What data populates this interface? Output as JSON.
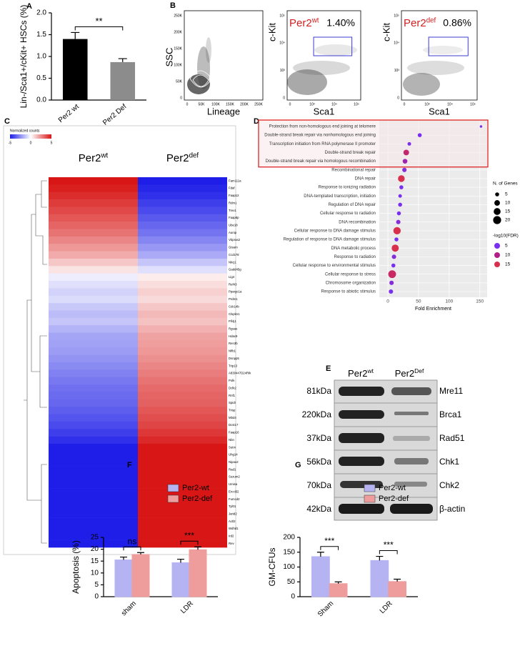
{
  "chart_data": [
    {
      "panel": "A",
      "type": "bar",
      "categories": [
        "Per2 wt",
        "Per2 Def"
      ],
      "values": [
        1.4,
        0.87
      ],
      "errors": [
        0.15,
        0.08
      ],
      "colors": [
        "#000000",
        "#8c8c8c"
      ],
      "ylabel": "Lin-/Sca1+/cKit+ HSCs (%)",
      "ylim": [
        0,
        2
      ],
      "yticks": [
        {
          "value": 0,
          "label": "0.0"
        },
        {
          "value": 0.5,
          "label": "0.5"
        },
        {
          "value": 1,
          "label": "1.0"
        },
        {
          "value": 1.5,
          "label": "1.5"
        },
        {
          "value": 2,
          "label": "2.0"
        }
      ],
      "annotations": [
        "**"
      ]
    },
    {
      "panel": "B",
      "type": "flow",
      "plots": [
        {
          "xlabel": "Lineage",
          "ylabel": "SSC",
          "xticks": [
            "0",
            "50K",
            "100K",
            "150K",
            "200K",
            "250K"
          ],
          "yticks": [
            "0",
            "50K",
            "100K",
            "150K",
            "200K",
            "250K"
          ]
        },
        {
          "title": {
            "base": "Per2",
            "sup": "wt"
          },
          "gate_label": "1.40%",
          "xlabel": "Sca1",
          "ylabel": "c-Kit",
          "xticks": [
            "0",
            "10³",
            "10⁴",
            "10⁵"
          ],
          "yticks": [
            "0",
            "10³",
            "10⁴",
            "10⁵"
          ]
        },
        {
          "title": {
            "base": "Per2",
            "sup": "def"
          },
          "gate_label": "0.86%",
          "xlabel": "Sca1",
          "ylabel": "c-Kit",
          "xticks": [
            "0",
            "10³",
            "10⁴",
            "10⁵"
          ],
          "yticks": [
            "0",
            "10³",
            "10⁴",
            "10⁵"
          ]
        }
      ],
      "gate_color": "#3b3bd6",
      "title_color": "#d02020"
    },
    {
      "panel": "C",
      "type": "heatmap",
      "colorbar_title": "Normalized counts",
      "colorbar_ticks": [
        -5,
        0,
        5
      ],
      "colors": {
        "low": "#1e1ee8",
        "mid": "#ffffff",
        "high": "#d81616"
      },
      "rows": [
        "Fam111a",
        "Fdaf",
        "Faap12",
        "Rdm1",
        "Trex1",
        "Faap8p",
        "Ube18",
        "Aunip",
        "Vbpras2",
        "Gtsam",
        "Ccdc78",
        "Nkcj1",
        "Gadd45g",
        "Lig4",
        "Ref43",
        "Ppargc1a",
        "Prdm1",
        "Cdc14b",
        "Clspkn1",
        "Pif4j1",
        "Rgsas",
        "Hdac9",
        "Ren3b",
        "Nfib1",
        "Dsnpp5",
        "Trip13",
        "A830447D24Rik",
        "Polk",
        "Dclk2",
        "Rnf1",
        "Spidr",
        "Trisp",
        "Mbd4",
        "Dcst17",
        "Faap16",
        "Nbn",
        "Sutm",
        "Uhg14",
        "Nipao2",
        "Rad1",
        "Suzum2",
        "Umisa",
        "Ercc6l2",
        "Fumcd2",
        "Tyl01",
        "Jarid2",
        "Actl2",
        "Wdhd1",
        "Ird2",
        "Rev"
      ],
      "columns": [
        {
          "name": {
            "base": "Per2",
            "sup": "wt"
          },
          "values": [
            5,
            4.8,
            4.5,
            4.2,
            3.9,
            3.6,
            3.3,
            3,
            2.6,
            2.2,
            1.8,
            1.2,
            0.6,
            -0.4,
            -0.7,
            -1,
            -0.8,
            -1.2,
            -1.5,
            -1.3,
            -1.7,
            -2,
            -2.1,
            -2.2,
            -2.4,
            -2.6,
            -2.8,
            -3,
            -3.2,
            -3.3,
            -3.4,
            -3.6,
            -3.8,
            -4,
            -4.3,
            -4.6,
            -5,
            -5,
            -5,
            -5,
            -5,
            -5,
            -5,
            -5,
            -5,
            -5,
            -5,
            -5,
            -5,
            -5
          ]
        },
        {
          "name": {
            "base": "Per2",
            "sup": "def"
          },
          "values": [
            -5,
            -4.8,
            -4.6,
            -4.3,
            -4,
            -3.7,
            -3.4,
            -3.1,
            -2.7,
            -2.3,
            -1.9,
            -1.3,
            -0.7,
            0.4,
            0.7,
            1,
            0.8,
            1.2,
            1.5,
            1.3,
            1.7,
            2,
            2.1,
            2.2,
            2.4,
            2.6,
            2.8,
            3,
            3.2,
            3.3,
            3.4,
            3.6,
            3.8,
            4,
            4.3,
            4.6,
            5,
            5,
            5,
            5,
            5,
            5,
            5,
            5,
            5,
            5,
            5,
            5,
            5,
            5
          ]
        }
      ]
    },
    {
      "panel": "D",
      "type": "dotplot",
      "terms": [
        "Protection from non-homologous end joining at telomere",
        "Double-strand break repair via nonhomologous end joining",
        "Transcription initiation from RNA polymerase II promoter",
        "Double-strand break repair",
        "Double-strand break repair via homologous recombination",
        "Recombinational repair",
        "DNA repair",
        "Response to ionizing radiation",
        "DNA-templated transcription, initiation",
        "Regulation of DNA repair",
        "Cellular response to radiation",
        "DNA recombination",
        "Cellular response to DNA damage stimulus",
        "Regulation of response to DNA damage stimulus",
        "DNA metabolic process",
        "Response to radiation",
        "Cellular response to environmental stimulus",
        "Cellular response to stress",
        "Chromosome organization",
        "Response to abiotic stimulus"
      ],
      "values": [
        152,
        52,
        35,
        30,
        28,
        27,
        22,
        22,
        20,
        20,
        18,
        17,
        15,
        14,
        12,
        10,
        9,
        7,
        6,
        5
      ],
      "sizes": [
        2,
        5,
        4,
        10,
        7,
        6,
        14,
        5,
        4,
        5,
        5,
        6,
        17,
        5,
        16,
        6,
        5,
        19,
        6,
        6
      ],
      "fdr": [
        3,
        5,
        4,
        12,
        8,
        6,
        15,
        5,
        4,
        5,
        5,
        6,
        16,
        5,
        15,
        6,
        5,
        13,
        6,
        5
      ],
      "xlabel": "Fold Enrichment",
      "xlim": [
        -14,
        162
      ],
      "xticks": [
        0,
        50,
        100,
        150
      ],
      "size_legend_title": "N. of Genes",
      "size_legend": [
        5,
        10,
        15,
        20
      ],
      "color_legend_title": "-log10(FDR)",
      "color_legend": [
        5,
        10,
        15
      ],
      "colors": [
        "#7a2ff0",
        "#b21f86",
        "#d8304c"
      ],
      "highlighted": 5,
      "highlight_color": "#e02424"
    },
    {
      "panel": "E",
      "type": "blot",
      "columns": [
        {
          "base": "Per2",
          "sup": "wt"
        },
        {
          "base": "Per2",
          "sup": "Def"
        }
      ],
      "proteins": [
        "Mre11",
        "Brca1",
        "Rad51",
        "Chk1",
        "Chk2",
        "β-actin"
      ],
      "sizes": [
        "81kDa",
        "220kDa",
        "37kDa",
        "56kDa",
        "70kDa",
        "42kDa"
      ]
    },
    {
      "panel": "F",
      "type": "grouped_bar",
      "categories": [
        "sham",
        "LDR"
      ],
      "series": [
        {
          "name": "Per2-wt",
          "color": "#b6b3f3",
          "values": [
            15.5,
            14.3
          ],
          "errors": [
            1.2,
            1.5
          ]
        },
        {
          "name": "Per2-def",
          "color": "#ef9c9c",
          "values": [
            17.8,
            19.8
          ],
          "errors": [
            0.8,
            1.2
          ]
        }
      ],
      "ylabel": "Apoptosis (%)",
      "ylim": [
        0,
        25
      ],
      "yticks": [
        0,
        5,
        10,
        15,
        20,
        25
      ],
      "annotations": [
        "ns",
        "***"
      ]
    },
    {
      "panel": "G",
      "type": "grouped_bar",
      "categories": [
        "Sham",
        "LDR"
      ],
      "series": [
        {
          "name": "Per2-wt",
          "color": "#b6b3f3",
          "values": [
            135,
            122
          ],
          "errors": [
            15,
            14
          ]
        },
        {
          "name": "Per2-def",
          "color": "#ef9c9c",
          "values": [
            44,
            51
          ],
          "errors": [
            6,
            8
          ]
        }
      ],
      "ylabel": "GM-CFUs",
      "ylim": [
        0,
        200
      ],
      "yticks": [
        0,
        50,
        100,
        150,
        200
      ],
      "annotations": [
        "***",
        "***"
      ]
    }
  ]
}
